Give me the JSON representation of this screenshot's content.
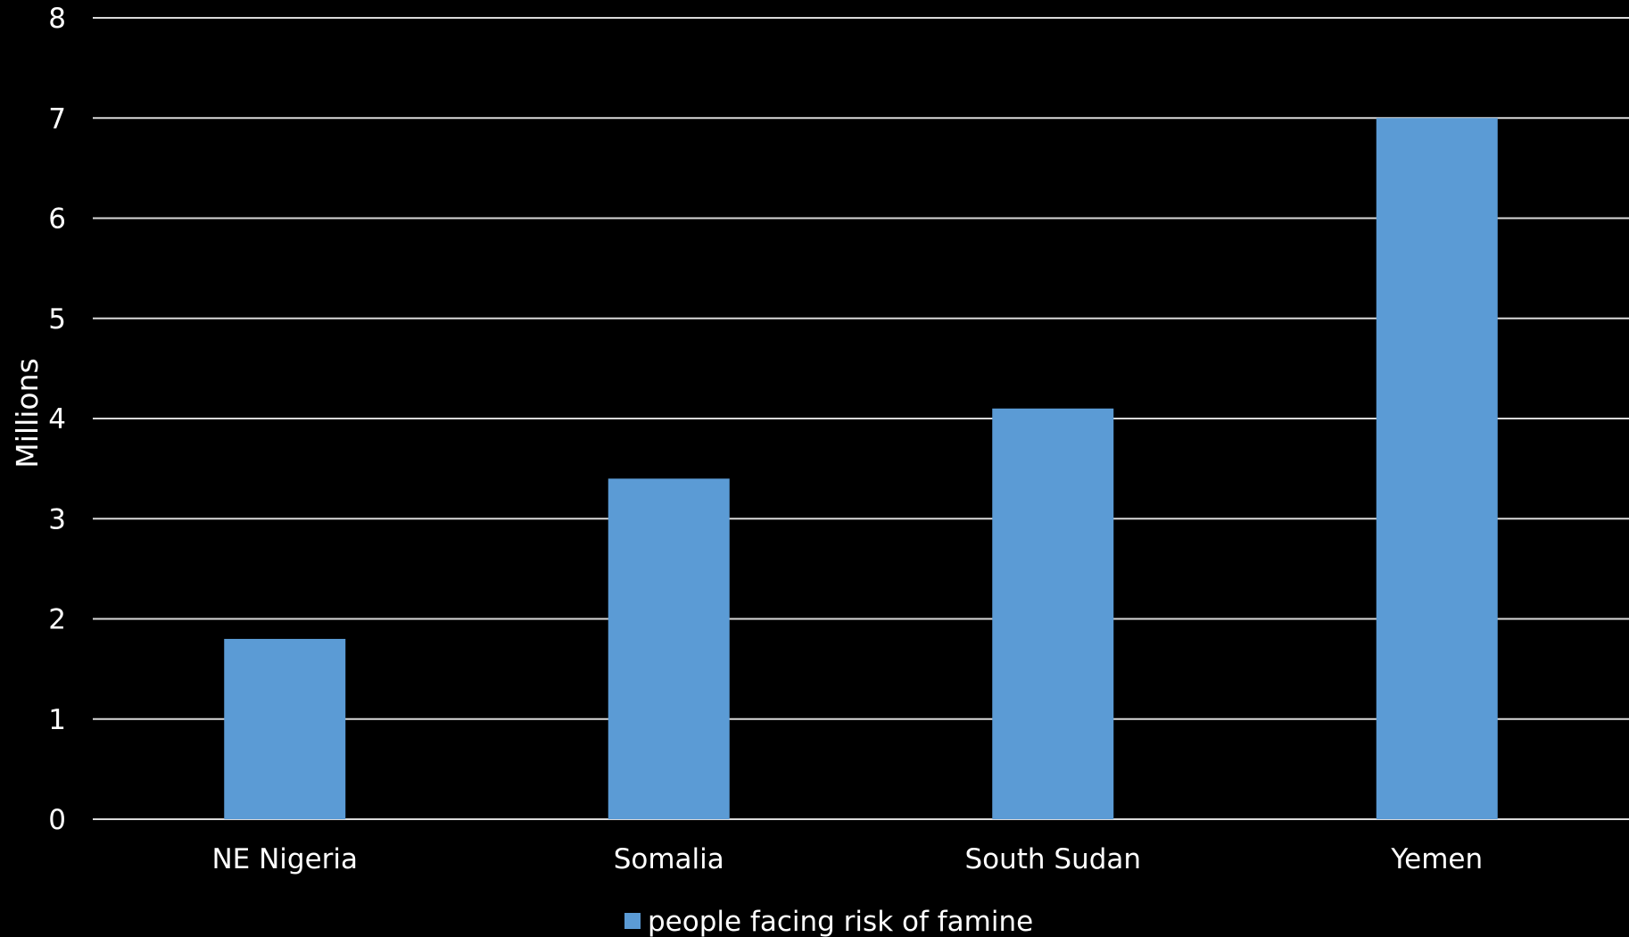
{
  "chart_data": {
    "type": "bar",
    "title": "",
    "xlabel": "",
    "ylabel": "Millions",
    "categories": [
      "NE Nigeria",
      "Somalia",
      "South Sudan",
      "Yemen"
    ],
    "series": [
      {
        "name": "people facing risk of famine",
        "values": [
          1.8,
          3.4,
          4.1,
          7.0
        ],
        "color": "#5b9bd5"
      }
    ],
    "ylim": [
      0,
      8
    ],
    "yticks": [
      "0",
      "1",
      "2",
      "3",
      "4",
      "5",
      "6",
      "7",
      "8"
    ],
    "grid": true,
    "legend_position": "bottom",
    "background": "#000000",
    "text_color": "#ffffff",
    "grid_color": "#d9d9d9"
  }
}
